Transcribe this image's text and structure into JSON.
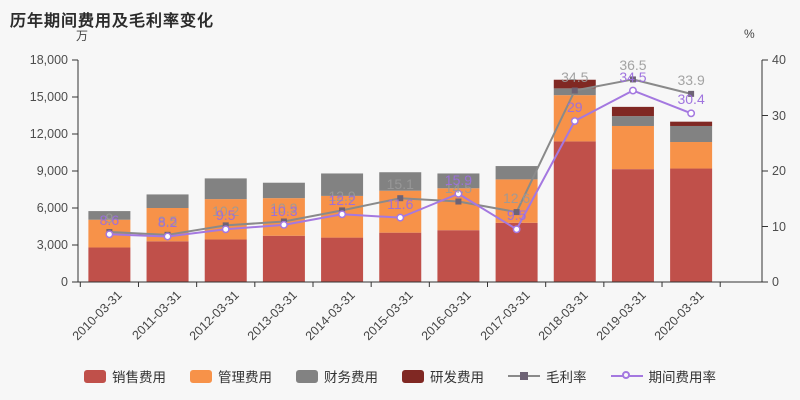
{
  "title": "历年期间费用及毛利率变化",
  "left_axis": {
    "unit": "万",
    "ticks": [
      "0",
      "3,000",
      "6,000",
      "9,000",
      "12,000",
      "15,000",
      "18,000"
    ],
    "max": 18000
  },
  "right_axis": {
    "unit": "%",
    "ticks": [
      "0",
      "10",
      "20",
      "30",
      "40"
    ],
    "max": 40
  },
  "colors": {
    "background": "#f7f7f7",
    "sales": "#c0504a",
    "admin": "#f79249",
    "finance": "#828282",
    "rnd": "#802823",
    "gross_margin_line": "#8a8a8a",
    "gross_margin_marker": "#6e6375",
    "expense_ratio_line": "#a478e0",
    "axis": "#333333"
  },
  "legend": [
    {
      "label": "销售费用",
      "type": "swatch",
      "color": "#c0504a"
    },
    {
      "label": "管理费用",
      "type": "swatch",
      "color": "#f79249"
    },
    {
      "label": "财务费用",
      "type": "swatch",
      "color": "#828282"
    },
    {
      "label": "研发费用",
      "type": "swatch",
      "color": "#802823"
    },
    {
      "label": "毛利率",
      "type": "line-square",
      "color": "#8a8a8a"
    },
    {
      "label": "期间费用率",
      "type": "line-circle",
      "color": "#a478e0"
    }
  ],
  "chart_data": {
    "type": "bar",
    "subtype": "stacked-bar-with-lines",
    "categories": [
      "2010-03-31",
      "2011-03-31",
      "2012-03-31",
      "2013-03-31",
      "2014-03-31",
      "2015-03-31",
      "2016-03-31",
      "2017-03-31",
      "2018-03-31",
      "2019-03-31",
      "2020-03-31"
    ],
    "ylim_left": [
      0,
      18000
    ],
    "ylim_right": [
      0,
      40
    ],
    "ylabel_left": "万",
    "ylabel_right": "%",
    "grid": false,
    "legend_position": "bottom",
    "series": [
      {
        "name": "销售费用",
        "type": "bar",
        "axis": "left",
        "color": "#c0504a",
        "values": [
          2800,
          3300,
          3450,
          3750,
          3600,
          4000,
          4200,
          4800,
          11400,
          9150,
          9200
        ]
      },
      {
        "name": "管理费用",
        "type": "bar",
        "axis": "left",
        "color": "#f79249",
        "values": [
          2250,
          2700,
          3270,
          3050,
          3380,
          3400,
          3400,
          3520,
          3750,
          3500,
          2150
        ]
      },
      {
        "name": "财务费用",
        "type": "bar",
        "axis": "left",
        "color": "#828282",
        "values": [
          700,
          1100,
          1680,
          1250,
          1820,
          1500,
          1200,
          1080,
          550,
          800,
          1300
        ]
      },
      {
        "name": "研发费用",
        "type": "bar",
        "axis": "left",
        "color": "#802823",
        "values": [
          0,
          0,
          0,
          0,
          0,
          0,
          0,
          0,
          700,
          750,
          350
        ]
      },
      {
        "name": "毛利率",
        "type": "line",
        "axis": "right",
        "color": "#8a8a8a",
        "marker": "square",
        "values": [
          9,
          8.5,
          10.2,
          10.9,
          12.9,
          15.1,
          14.5,
          12.6,
          34.5,
          36.5,
          33.9
        ],
        "labels": [
          "9",
          "8.5",
          "10.2",
          "10.9",
          "12.9",
          "15.1",
          "14.5",
          "12.6",
          "34.5",
          "36.5",
          "33.9"
        ]
      },
      {
        "name": "期间费用率",
        "type": "line",
        "axis": "right",
        "color": "#a478e0",
        "marker": "hollow-circle",
        "values": [
          8.6,
          8.2,
          9.5,
          10.3,
          12.2,
          11.6,
          15.9,
          9.5,
          29,
          34.5,
          30.4
        ],
        "labels": [
          "8.6",
          "8.2",
          "9.5",
          "10.3",
          "12.2",
          "11.6",
          "15.9",
          "9.5",
          "29",
          "34.5",
          "30.4"
        ]
      }
    ]
  }
}
